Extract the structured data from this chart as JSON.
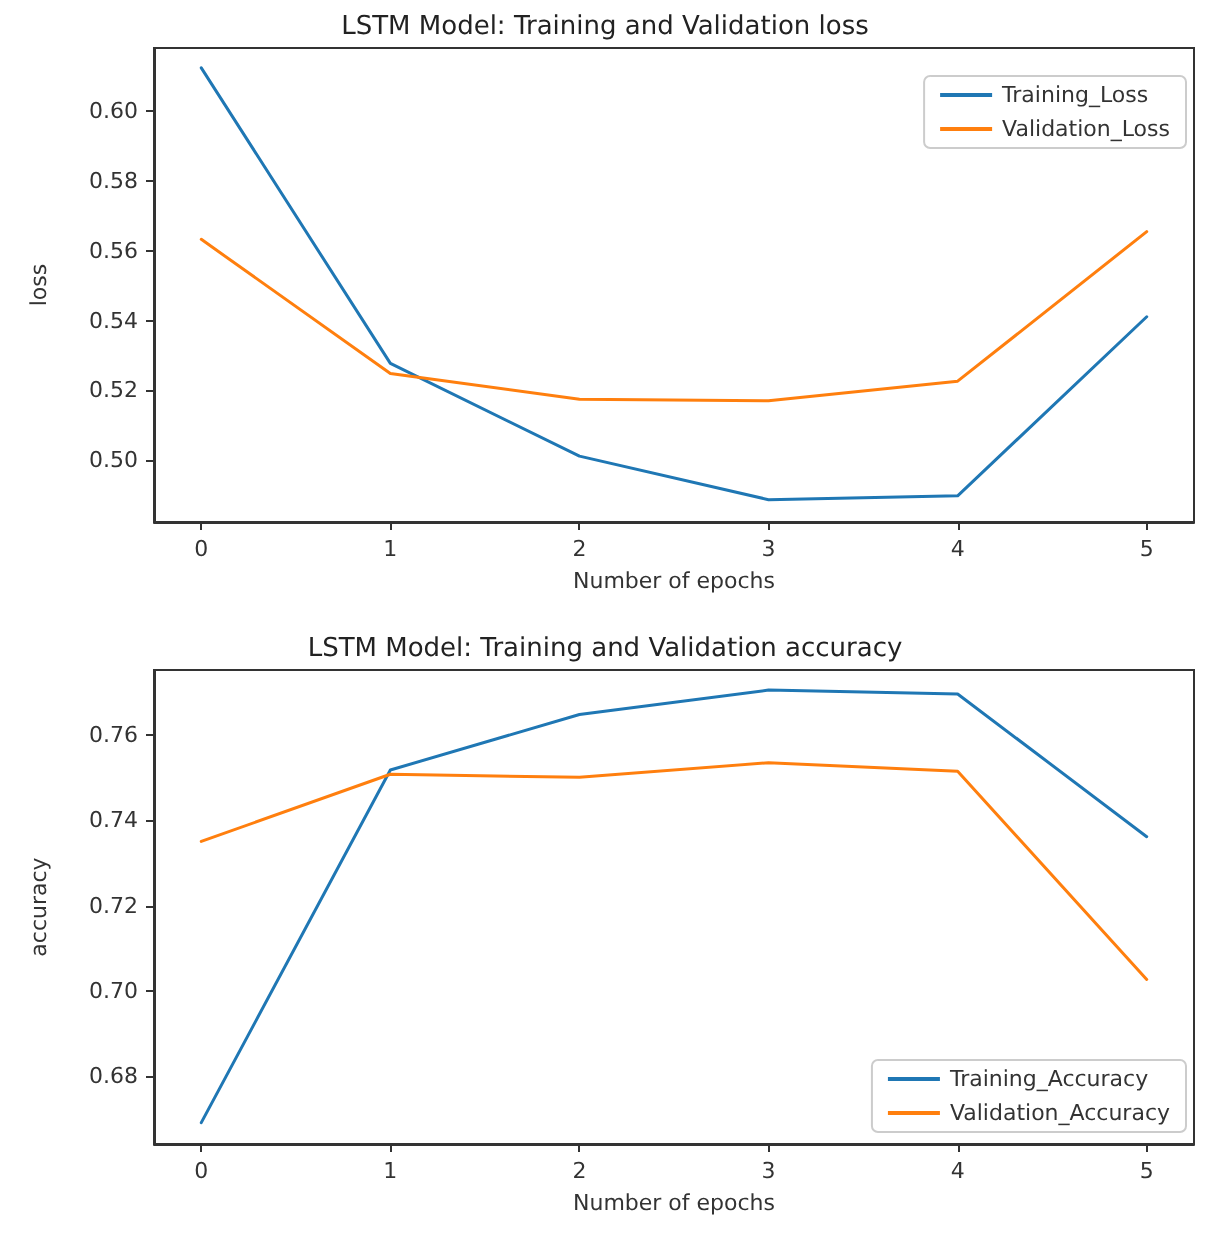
{
  "chart_data": [
    {
      "type": "line",
      "title": "LSTM Model: Training and Validation loss",
      "xlabel": "Number of epochs",
      "ylabel": "loss",
      "x": [
        0,
        1,
        2,
        3,
        4,
        5
      ],
      "series": [
        {
          "name": "Training_Loss",
          "color": "#1f77b4",
          "values": [
            0.6125,
            0.5277,
            0.5011,
            0.4886,
            0.4897,
            0.5411
          ]
        },
        {
          "name": "Validation_Loss",
          "color": "#ff7f0e",
          "values": [
            0.5633,
            0.5248,
            0.5174,
            0.517,
            0.5226,
            0.5655
          ]
        }
      ],
      "xlim": [
        -0.25,
        5.25
      ],
      "xticks": [
        0,
        1,
        2,
        3,
        4,
        5
      ],
      "ylim": [
        0.4822,
        0.6182
      ],
      "yticks": [
        {
          "value": 0.5,
          "label": "0.50"
        },
        {
          "value": 0.52,
          "label": "0.52"
        },
        {
          "value": 0.54,
          "label": "0.54"
        },
        {
          "value": 0.56,
          "label": "0.56"
        },
        {
          "value": 0.58,
          "label": "0.58"
        },
        {
          "value": 0.6,
          "label": "0.60"
        }
      ],
      "grid": false,
      "legend": "top right",
      "marker": "none",
      "line_style": "solid"
    },
    {
      "type": "line",
      "title": "LSTM Model: Training and Validation accuracy",
      "xlabel": "Number of epochs",
      "ylabel": "accuracy",
      "x": [
        0,
        1,
        2,
        3,
        4,
        5
      ],
      "series": [
        {
          "name": "Training_Accuracy",
          "color": "#1f77b4",
          "values": [
            0.6692,
            0.7517,
            0.7647,
            0.7704,
            0.7695,
            0.7361
          ]
        },
        {
          "name": "Validation_Accuracy",
          "color": "#ff7f0e",
          "values": [
            0.735,
            0.7507,
            0.75,
            0.7534,
            0.7514,
            0.7027
          ]
        }
      ],
      "xlim": [
        -0.25,
        5.25
      ],
      "xticks": [
        0,
        1,
        2,
        3,
        4,
        5
      ],
      "ylim": [
        0.6642,
        0.7751
      ],
      "yticks": [
        {
          "value": 0.68,
          "label": "0.68"
        },
        {
          "value": 0.7,
          "label": "0.70"
        },
        {
          "value": 0.72,
          "label": "0.72"
        },
        {
          "value": 0.74,
          "label": "0.74"
        },
        {
          "value": 0.76,
          "label": "0.76"
        }
      ],
      "grid": false,
      "legend": "bottom right",
      "marker": "none",
      "line_style": "solid"
    }
  ]
}
